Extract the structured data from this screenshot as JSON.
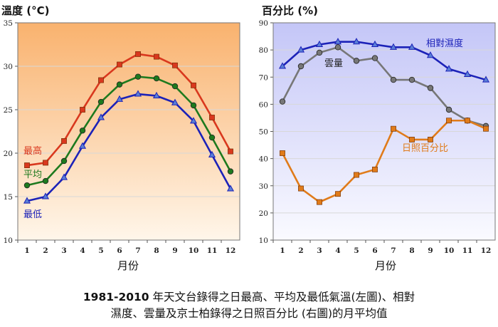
{
  "caption": {
    "line1_bold": "1981-2010",
    "line1_text": " 年天文台錄得之日最高、平均及最低氣溫(左圖)、相對",
    "line2_text": "濕度、雲量及京士柏錄得之日照百分比 (右圖)的月平均值"
  },
  "chart_data": [
    {
      "type": "line",
      "title": "溫度 (°C)",
      "xlabel": "月份",
      "ylabel": "溫度 (°C)",
      "ylim": [
        10,
        35
      ],
      "yticks": [
        "10",
        "15",
        "20",
        "25",
        "30",
        "35"
      ],
      "categories": [
        "1",
        "2",
        "3",
        "4",
        "5",
        "6",
        "7",
        "8",
        "9",
        "10",
        "11",
        "12"
      ],
      "gradient": {
        "top": "#f9b26e",
        "bottom": "#fff6ea"
      },
      "series": [
        {
          "name": "最高",
          "color": "#d9381e",
          "marker": "square",
          "label_color": "#d9381e",
          "values": [
            18.6,
            18.9,
            21.4,
            25.0,
            28.4,
            30.2,
            31.4,
            31.1,
            30.1,
            27.8,
            24.1,
            20.2
          ]
        },
        {
          "name": "平均",
          "color": "#1e7a1e",
          "marker": "circle",
          "label_color": "#1e7a1e",
          "values": [
            16.3,
            16.8,
            19.1,
            22.6,
            25.9,
            27.9,
            28.8,
            28.6,
            27.7,
            25.5,
            21.8,
            17.9
          ]
        },
        {
          "name": "最低",
          "color": "#1c22b8",
          "marker": "triangle",
          "label_color": "#1c22b8",
          "values": [
            14.5,
            15.0,
            17.2,
            20.8,
            24.1,
            26.2,
            26.8,
            26.6,
            25.8,
            23.7,
            19.8,
            15.9
          ]
        }
      ]
    },
    {
      "type": "line",
      "title": "百分比 (%)",
      "xlabel": "月份",
      "ylabel": "百分比 (%)",
      "ylim": [
        10,
        90
      ],
      "yticks": [
        "10",
        "20",
        "30",
        "40",
        "50",
        "60",
        "70",
        "80",
        "90"
      ],
      "categories": [
        "1",
        "2",
        "3",
        "4",
        "5",
        "6",
        "7",
        "8",
        "9",
        "10",
        "11",
        "12"
      ],
      "gradient": {
        "top": "#c4c6f7",
        "bottom": "#fafaff"
      },
      "series": [
        {
          "name": "相對濕度",
          "color": "#1c22b8",
          "marker": "triangle",
          "label_color": "#1c22b8",
          "values": [
            74,
            80,
            82,
            83,
            83,
            82,
            81,
            81,
            78,
            73,
            71,
            69
          ]
        },
        {
          "name": "雲量",
          "color": "#777777",
          "marker": "circle",
          "label_color": "#222222",
          "values": [
            61,
            74,
            79,
            81,
            76,
            77,
            69,
            69,
            66,
            58,
            54,
            52
          ]
        },
        {
          "name": "日照百分比",
          "color": "#e07b1a",
          "marker": "square",
          "label_color": "#e07b1a",
          "values": [
            42,
            29,
            24,
            27,
            34,
            36,
            51,
            47,
            47,
            54,
            54,
            51
          ]
        }
      ]
    }
  ]
}
